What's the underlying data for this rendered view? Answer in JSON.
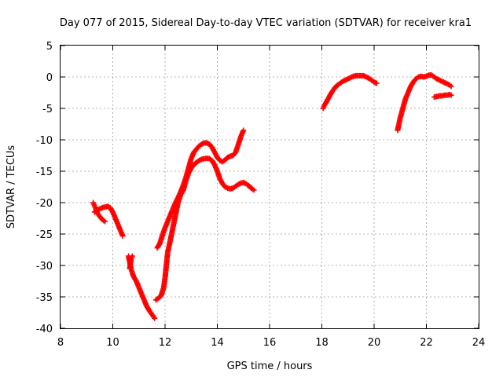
{
  "chart_data": {
    "type": "scatter",
    "title": "Day 077 of 2015, Sidereal Day-to-day VTEC variation (SDTVAR) for receiver kra1",
    "xlabel": "GPS time / hours",
    "ylabel": "SDTVAR / TECUs",
    "xlim": [
      8,
      24
    ],
    "ylim": [
      -40,
      5
    ],
    "xticks": [
      8,
      10,
      12,
      14,
      16,
      18,
      20,
      22,
      24
    ],
    "yticks": [
      5,
      0,
      -5,
      -10,
      -15,
      -20,
      -25,
      -30,
      -35,
      -40
    ],
    "grid": true,
    "legend": "none",
    "marker": "plus",
    "color": "#ff0000",
    "series": [
      {
        "values": [
          [
            9.25,
            -20
          ],
          [
            9.3,
            -20.5
          ],
          [
            9.35,
            -21
          ],
          [
            9.4,
            -21.6
          ],
          [
            9.5,
            -22.2
          ],
          [
            9.6,
            -22.7
          ],
          [
            9.7,
            -23
          ]
        ]
      },
      {
        "values": [
          [
            9.3,
            -21.5
          ],
          [
            9.4,
            -21.2
          ],
          [
            9.5,
            -21
          ],
          [
            9.6,
            -20.8
          ],
          [
            9.7,
            -20.7
          ],
          [
            9.8,
            -20.6
          ],
          [
            9.9,
            -20.8
          ],
          [
            10.0,
            -21.5
          ],
          [
            10.1,
            -22.5
          ],
          [
            10.2,
            -23.5
          ],
          [
            10.3,
            -24.5
          ],
          [
            10.38,
            -25.3
          ]
        ]
      },
      {
        "values": [
          [
            10.6,
            -28.5
          ],
          [
            10.65,
            -29.5
          ],
          [
            10.7,
            -30.5
          ],
          [
            10.75,
            -31.2
          ],
          [
            10.8,
            -31.8
          ],
          [
            10.9,
            -32.5
          ],
          [
            11.0,
            -33.5
          ],
          [
            11.1,
            -34.5
          ],
          [
            11.2,
            -35.5
          ],
          [
            11.3,
            -36.5
          ],
          [
            11.4,
            -37.2
          ],
          [
            11.5,
            -37.8
          ],
          [
            11.6,
            -38.4
          ]
        ]
      },
      {
        "values": [
          [
            10.65,
            -30.5
          ],
          [
            10.7,
            -29
          ],
          [
            10.75,
            -28.5
          ]
        ]
      },
      {
        "values": [
          [
            11.65,
            -35.5
          ],
          [
            11.75,
            -35.2
          ],
          [
            11.85,
            -34.8
          ],
          [
            11.95,
            -33.5
          ],
          [
            12.0,
            -32
          ],
          [
            12.05,
            -30
          ],
          [
            12.1,
            -28
          ],
          [
            12.2,
            -26
          ],
          [
            12.3,
            -24
          ],
          [
            12.4,
            -22
          ],
          [
            12.5,
            -20
          ],
          [
            12.6,
            -18.7
          ],
          [
            12.7,
            -18
          ],
          [
            12.8,
            -16.5
          ],
          [
            12.9,
            -15.3
          ],
          [
            13.0,
            -14.5
          ],
          [
            13.1,
            -14
          ],
          [
            13.2,
            -13.6
          ],
          [
            13.3,
            -13.3
          ],
          [
            13.4,
            -13.1
          ],
          [
            13.5,
            -13
          ],
          [
            13.6,
            -12.95
          ],
          [
            13.7,
            -13
          ],
          [
            13.8,
            -13.3
          ],
          [
            13.9,
            -14
          ],
          [
            14.0,
            -15
          ],
          [
            14.1,
            -16.2
          ],
          [
            14.2,
            -17
          ],
          [
            14.3,
            -17.5
          ],
          [
            14.4,
            -17.7
          ],
          [
            14.5,
            -17.8
          ],
          [
            14.6,
            -17.7
          ],
          [
            14.7,
            -17.4
          ],
          [
            14.8,
            -17.1
          ],
          [
            14.9,
            -16.9
          ],
          [
            15.0,
            -16.8
          ],
          [
            15.1,
            -17
          ],
          [
            15.2,
            -17.3
          ],
          [
            15.3,
            -17.7
          ],
          [
            15.4,
            -18
          ]
        ]
      },
      {
        "values": [
          [
            11.7,
            -27.2
          ],
          [
            11.8,
            -26.5
          ],
          [
            11.9,
            -25.2
          ],
          [
            12.0,
            -24
          ],
          [
            12.1,
            -23
          ],
          [
            12.2,
            -22
          ],
          [
            12.3,
            -21
          ],
          [
            12.4,
            -20
          ],
          [
            12.5,
            -19.2
          ],
          [
            12.6,
            -18.3
          ],
          [
            12.7,
            -17.2
          ],
          [
            12.8,
            -16
          ],
          [
            12.9,
            -14.5
          ],
          [
            13.0,
            -13
          ],
          [
            13.1,
            -12
          ],
          [
            13.2,
            -11.5
          ],
          [
            13.3,
            -11
          ],
          [
            13.4,
            -10.7
          ],
          [
            13.5,
            -10.5
          ],
          [
            13.6,
            -10.5
          ],
          [
            13.7,
            -10.7
          ],
          [
            13.8,
            -11.2
          ],
          [
            13.9,
            -12
          ],
          [
            14.0,
            -12.8
          ],
          [
            14.1,
            -13.3
          ],
          [
            14.2,
            -13.5
          ],
          [
            14.3,
            -13.2
          ],
          [
            14.4,
            -12.8
          ],
          [
            14.5,
            -12.6
          ],
          [
            14.6,
            -12.5
          ],
          [
            14.7,
            -12
          ],
          [
            14.8,
            -10.8
          ],
          [
            14.9,
            -9.5
          ],
          [
            15.0,
            -8.5
          ]
        ]
      },
      {
        "values": [
          [
            18.05,
            -5
          ],
          [
            18.1,
            -4.5
          ],
          [
            18.2,
            -3.8
          ],
          [
            18.3,
            -3
          ],
          [
            18.4,
            -2.3
          ],
          [
            18.5,
            -1.7
          ],
          [
            18.6,
            -1.3
          ],
          [
            18.7,
            -1
          ],
          [
            18.8,
            -0.7
          ],
          [
            18.9,
            -0.5
          ],
          [
            19.0,
            -0.3
          ],
          [
            19.1,
            -0.1
          ],
          [
            19.2,
            0.1
          ],
          [
            19.3,
            0.2
          ],
          [
            19.4,
            0.2
          ],
          [
            19.5,
            0.2
          ],
          [
            19.6,
            0.2
          ],
          [
            19.7,
            0
          ],
          [
            19.8,
            -0.2
          ],
          [
            19.9,
            -0.5
          ],
          [
            20.0,
            -0.8
          ],
          [
            20.1,
            -1
          ]
        ]
      },
      {
        "values": [
          [
            20.9,
            -8.5
          ],
          [
            20.95,
            -7.5
          ],
          [
            21.0,
            -6.5
          ],
          [
            21.1,
            -5
          ],
          [
            21.2,
            -3.5
          ],
          [
            21.3,
            -2.5
          ],
          [
            21.4,
            -1.5
          ],
          [
            21.5,
            -0.8
          ],
          [
            21.6,
            -0.3
          ],
          [
            21.7,
            0
          ],
          [
            21.8,
            0.1
          ],
          [
            21.9,
            0
          ],
          [
            22.0,
            0.1
          ],
          [
            22.1,
            0.3
          ],
          [
            22.2,
            0.3
          ],
          [
            22.3,
            0
          ],
          [
            22.4,
            -0.3
          ],
          [
            22.5,
            -0.5
          ],
          [
            22.6,
            -0.7
          ],
          [
            22.7,
            -0.9
          ],
          [
            22.8,
            -1.1
          ],
          [
            22.9,
            -1.3
          ],
          [
            22.95,
            -1.5
          ]
        ]
      },
      {
        "values": [
          [
            22.3,
            -3.2
          ],
          [
            22.4,
            -3.1
          ],
          [
            22.5,
            -3
          ],
          [
            22.6,
            -3
          ],
          [
            22.7,
            -2.9
          ],
          [
            22.8,
            -2.9
          ],
          [
            22.9,
            -2.8
          ],
          [
            22.95,
            -2.9
          ]
        ]
      }
    ]
  }
}
